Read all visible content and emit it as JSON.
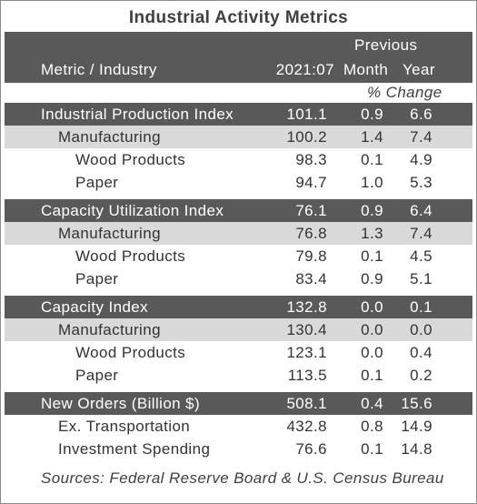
{
  "title": "Industrial Activity Metrics",
  "header": {
    "label": "Metric / Industry",
    "current": "2021:07",
    "previous": "Previous",
    "month": "Month",
    "year": "Year",
    "change": "% Change"
  },
  "sections": [
    {
      "name": "Industrial Production Index",
      "values": [
        "101.1",
        "0.9",
        "6.6"
      ],
      "rows": [
        {
          "label": "Manufacturing",
          "values": [
            "100.2",
            "1.4",
            "7.4"
          ]
        },
        {
          "label": "Wood Products",
          "values": [
            "98.3",
            "0.1",
            "4.9"
          ]
        },
        {
          "label": "Paper",
          "values": [
            "94.7",
            "1.0",
            "5.3"
          ]
        }
      ]
    },
    {
      "name": "Capacity Utilization Index",
      "values": [
        "76.1",
        "0.9",
        "6.4"
      ],
      "rows": [
        {
          "label": "Manufacturing",
          "values": [
            "76.8",
            "1.3",
            "7.4"
          ]
        },
        {
          "label": "Wood Products",
          "values": [
            "79.8",
            "0.1",
            "4.5"
          ]
        },
        {
          "label": "Paper",
          "values": [
            "83.4",
            "0.9",
            "5.1"
          ]
        }
      ]
    },
    {
      "name": "Capacity Index",
      "values": [
        "132.8",
        "0.0",
        "0.1"
      ],
      "rows": [
        {
          "label": "Manufacturing",
          "values": [
            "130.4",
            "0.0",
            "0.0"
          ]
        },
        {
          "label": "Wood Products",
          "values": [
            "123.1",
            "0.0",
            "0.4"
          ]
        },
        {
          "label": "Paper",
          "values": [
            "113.5",
            "0.1",
            "0.2"
          ]
        }
      ]
    },
    {
      "name": "New Orders (Billion $)",
      "values": [
        "508.1",
        "0.4",
        "15.6"
      ],
      "rows": [
        {
          "label": "Ex. Transportation",
          "values": [
            "432.8",
            "0.8",
            "14.9"
          ]
        },
        {
          "label": "Investment Spending",
          "values": [
            "76.6",
            "0.1",
            "14.8"
          ]
        }
      ]
    }
  ],
  "source": "Sources: Federal Reserve Board & U.S. Census Bureau"
}
